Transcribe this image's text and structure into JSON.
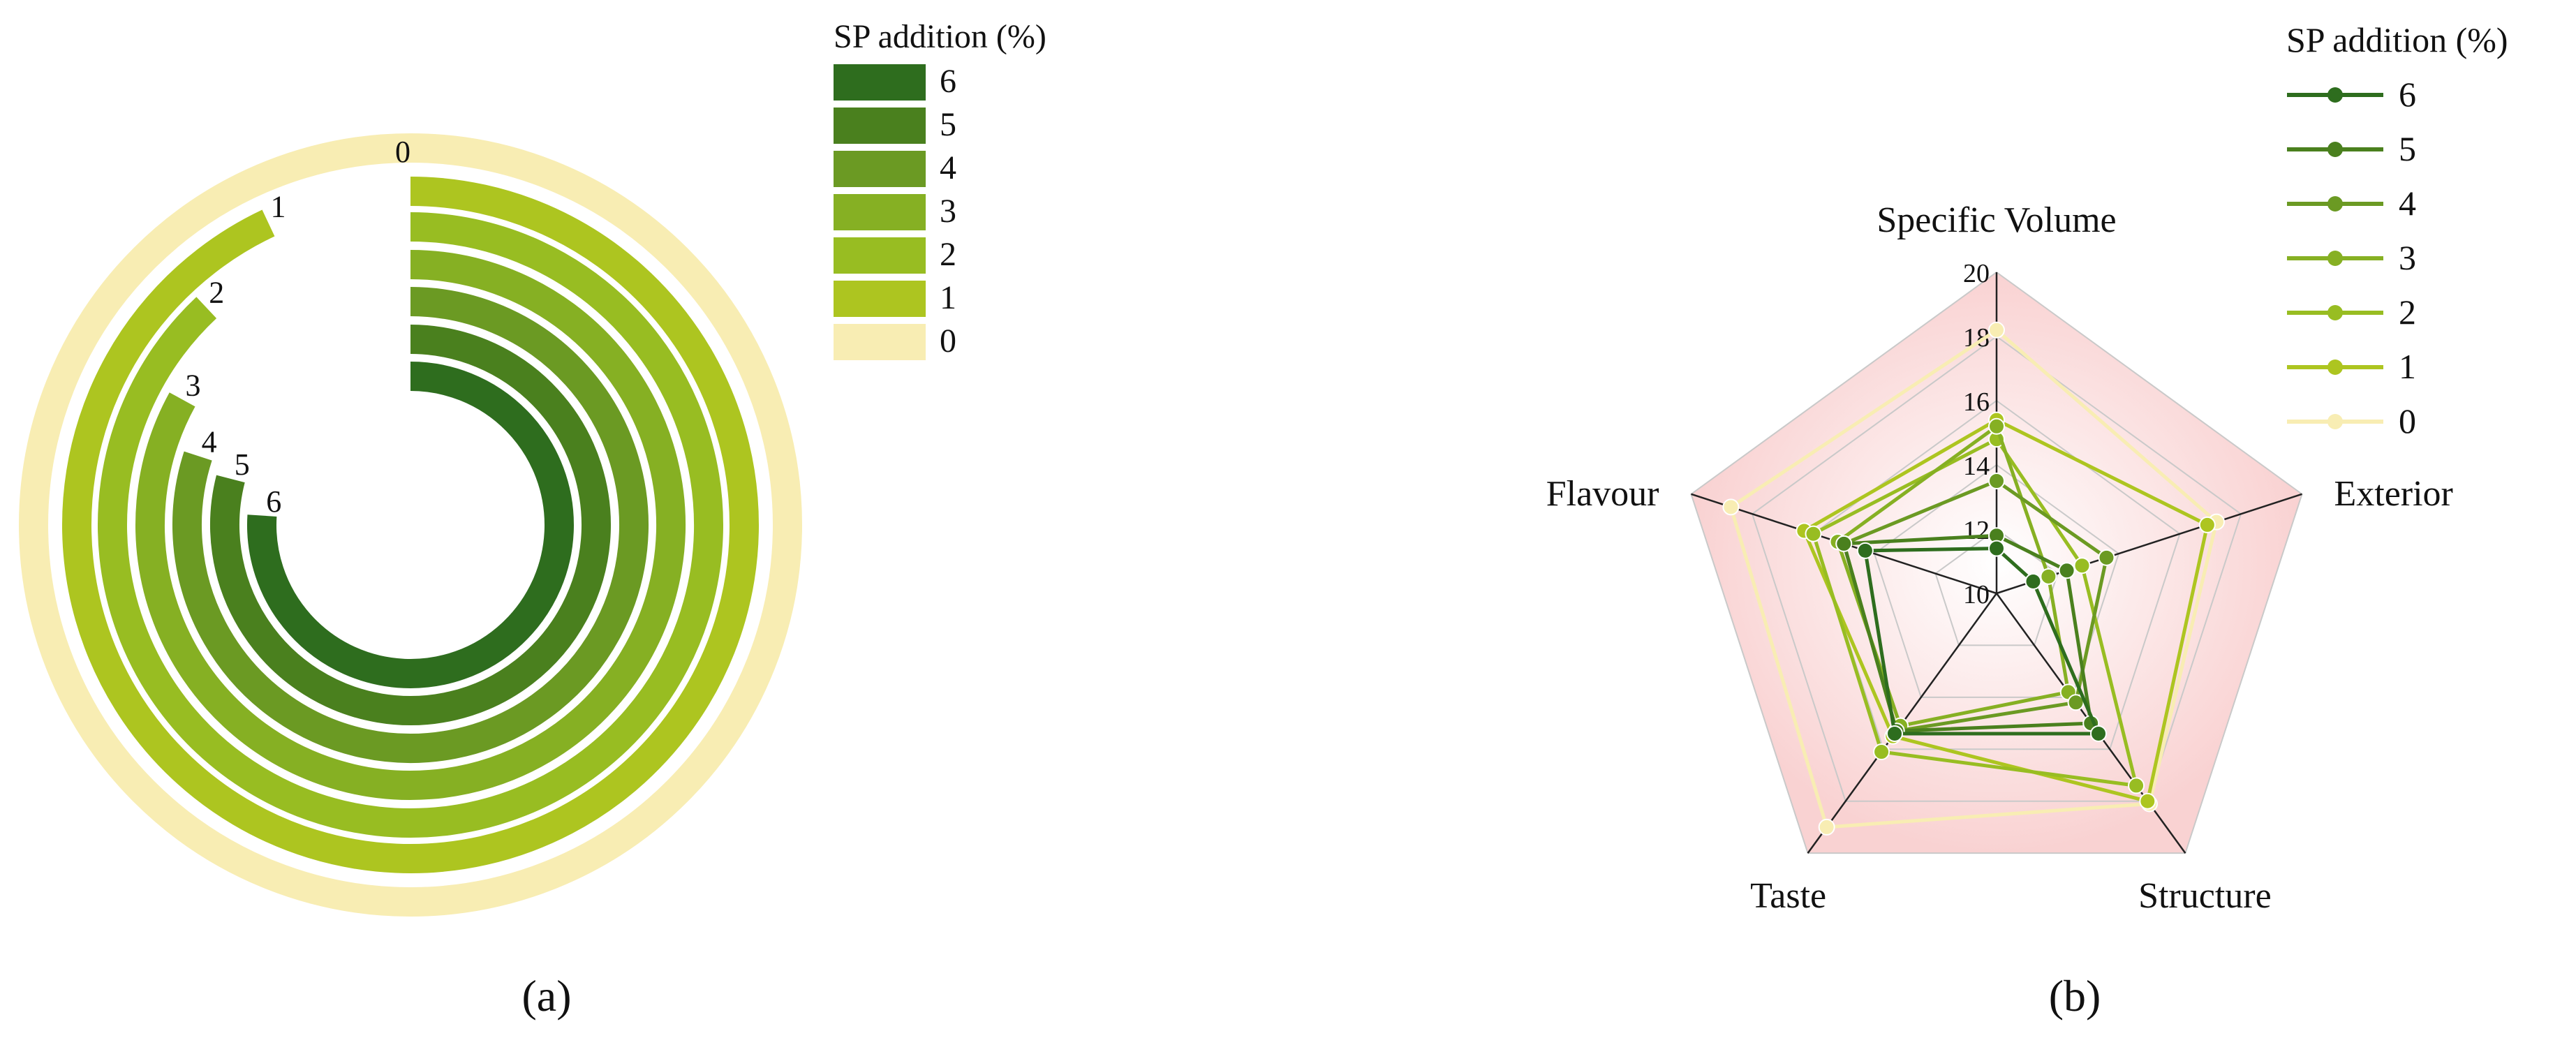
{
  "chart_data": [
    {
      "panel_label": "(a)",
      "type": "radial-bar",
      "legend_title": "SP addition (%)",
      "legend_placement": "right",
      "series": [
        {
          "name": "0",
          "label": "0",
          "fraction": 1.0,
          "color": "#F8EDB3"
        },
        {
          "name": "1",
          "label": "1",
          "fraction": 0.93,
          "color": "#ADC520"
        },
        {
          "name": "2",
          "label": "2",
          "fraction": 0.88,
          "color": "#98BD22"
        },
        {
          "name": "3",
          "label": "3",
          "fraction": 0.83,
          "color": "#86B023"
        },
        {
          "name": "4",
          "label": "4",
          "fraction": 0.8,
          "color": "#6B9A23"
        },
        {
          "name": "5",
          "label": "5",
          "fraction": 0.79,
          "color": "#4A801E"
        },
        {
          "name": "6",
          "label": "6",
          "fraction": 0.76,
          "color": "#2E6D1E"
        }
      ]
    },
    {
      "panel_label": "(b)",
      "type": "radar",
      "legend_title": "SP addition (%)",
      "legend_placement": "top-right",
      "axes": [
        "Specific Volume",
        "Exterior",
        "Structure",
        "Taste",
        "Flavour"
      ],
      "rmin": 10,
      "rmax": 20,
      "tick_labels": [
        "10",
        "12",
        "14",
        "16",
        "18",
        "20"
      ],
      "grid": true,
      "series": [
        {
          "name": "6",
          "color": "#2E6D1E",
          "values": [
            11.4,
            11.2,
            15.4,
            15.4,
            14.3
          ]
        },
        {
          "name": "5",
          "color": "#4A801E",
          "values": [
            11.8,
            12.3,
            15.0,
            15.3,
            15.0
          ]
        },
        {
          "name": "4",
          "color": "#6B9A23",
          "values": [
            13.5,
            13.6,
            14.2,
            15.3,
            15.0
          ]
        },
        {
          "name": "3",
          "color": "#86B023",
          "values": [
            15.2,
            11.7,
            13.8,
            15.1,
            15.2
          ]
        },
        {
          "name": "2",
          "color": "#98BD22",
          "values": [
            14.8,
            12.8,
            17.4,
            16.1,
            16.0
          ]
        },
        {
          "name": "1",
          "color": "#ADC520",
          "values": [
            15.4,
            16.9,
            18.0,
            15.5,
            16.3
          ]
        },
        {
          "name": "0",
          "color": "#F8EDB3",
          "values": [
            18.2,
            17.2,
            18.1,
            19.0,
            18.7
          ]
        }
      ]
    }
  ]
}
